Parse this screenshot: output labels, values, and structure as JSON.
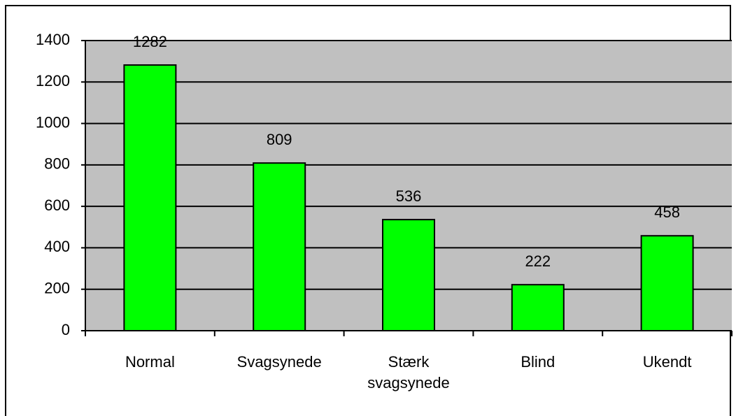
{
  "chart_data": {
    "type": "bar",
    "categories": [
      "Normal",
      "Svagsynede",
      "Stærk svagsynede",
      "Blind",
      "Ukendt"
    ],
    "values": [
      1282,
      809,
      536,
      222,
      458
    ],
    "color": "#00ff00",
    "ylim": [
      0,
      1400
    ],
    "yticks": [
      0,
      200,
      400,
      600,
      800,
      1000,
      1200,
      1400
    ],
    "grid": true
  }
}
